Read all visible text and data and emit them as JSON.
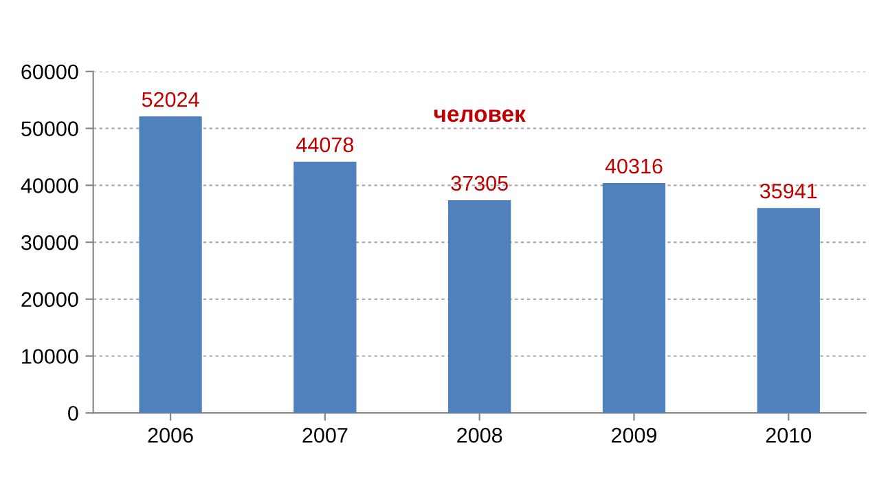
{
  "chart_data": {
    "type": "bar",
    "categories": [
      "2006",
      "2007",
      "2008",
      "2009",
      "2010"
    ],
    "values": [
      52024,
      44078,
      37305,
      40316,
      35941
    ],
    "color": "#4f81bd",
    "ylim": [
      0,
      60000
    ],
    "yticks": [
      0,
      10000,
      20000,
      30000,
      40000,
      50000,
      60000
    ],
    "grid": "y",
    "data_labels": true,
    "annotations": [
      "человек"
    ]
  }
}
